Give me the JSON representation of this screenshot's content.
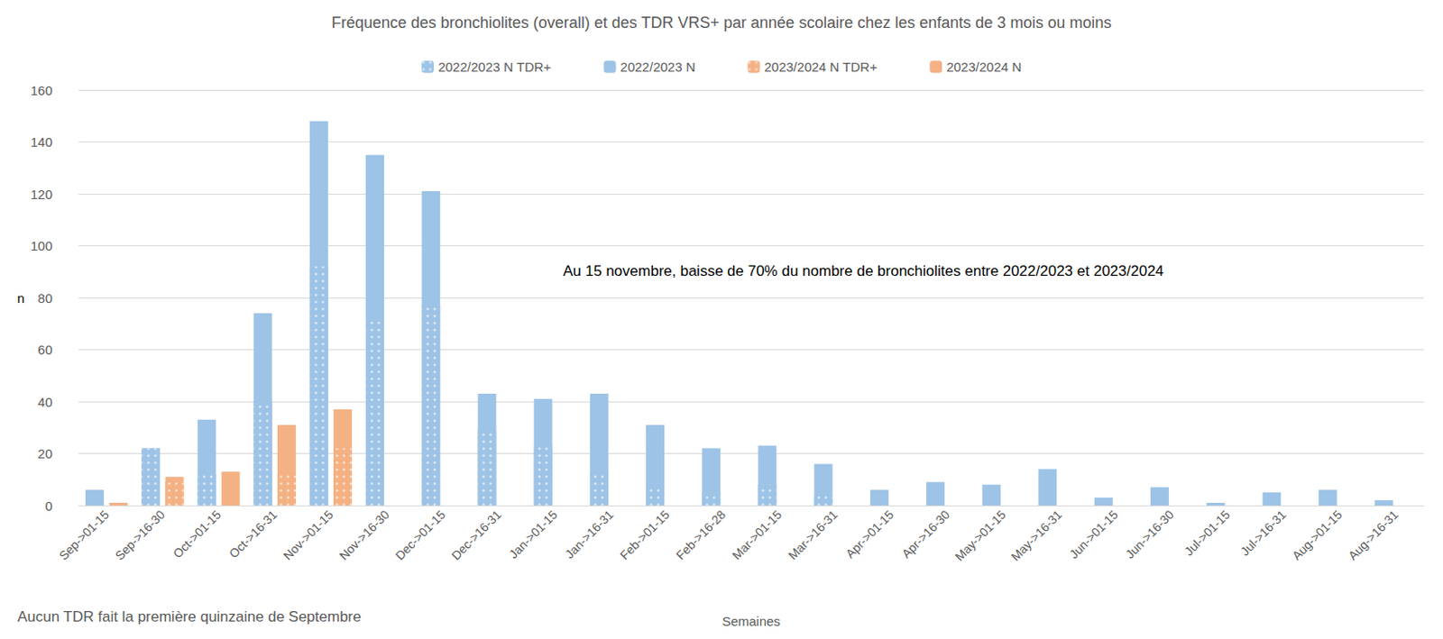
{
  "chart_data": {
    "type": "bar",
    "title": "Fréquence des bronchiolites (overall) et des TDR VRS+ par année scolaire chez les enfants de 3 mois ou moins",
    "xlabel": "Semaines",
    "ylabel": "n",
    "annotations": [
      "Au 15 novembre, baisse de 70% du nombre de bronchiolites entre 2022/2023 et 2023/2024",
      "Aucun TDR fait la première quinzaine de Septembre"
    ],
    "categories": [
      "Sep->01-15",
      "Sep->16-30",
      "Oct->01-15",
      "Oct->16-31",
      "Nov->01-15",
      "Nov->16-30",
      "Dec->01-15",
      "Dec->16-31",
      "Jan->01-15",
      "Jan->16-31",
      "Feb->01-15",
      "Feb->16-28",
      "Mar->01-15",
      "Mar->16-31",
      "Apr->01-15",
      "Apr->16-30",
      "May->01-15",
      "May->16-31",
      "Jun->01-15",
      "Jun->16-30",
      "Jul->01-15",
      "Jul->16-31",
      "Aug->01-15",
      "Aug->16-31"
    ],
    "series": [
      {
        "name": "2022/2023 N TDR+",
        "color": "#9dc3e6",
        "marker": "hatched",
        "values": [
          null,
          22,
          12,
          40,
          92,
          72,
          77,
          29,
          23,
          13,
          7,
          5,
          8,
          4,
          0,
          0,
          0,
          0,
          0,
          0,
          0,
          0,
          0,
          0
        ]
      },
      {
        "name": "2022/2023 N",
        "color": "#9dc3e6",
        "marker": "solid",
        "values": [
          6,
          22,
          33,
          74,
          148,
          135,
          121,
          43,
          41,
          43,
          31,
          22,
          23,
          16,
          6,
          9,
          8,
          14,
          3,
          7,
          1,
          5,
          6,
          2
        ]
      },
      {
        "name": "2023/2024 N TDR+",
        "color": "#f4b183",
        "marker": "hatched",
        "values": [
          null,
          9,
          0,
          12,
          22,
          null,
          null,
          null,
          null,
          null,
          null,
          null,
          null,
          null,
          null,
          null,
          null,
          null,
          null,
          null,
          null,
          null,
          null,
          null
        ]
      },
      {
        "name": "2023/2024 N",
        "color": "#f4b183",
        "marker": "solid",
        "values": [
          1,
          11,
          13,
          31,
          37,
          null,
          null,
          null,
          null,
          null,
          null,
          null,
          null,
          null,
          null,
          null,
          null,
          null,
          null,
          null,
          null,
          null,
          null,
          null
        ]
      }
    ],
    "ylim": [
      0,
      160
    ],
    "yticks": [
      0,
      20,
      40,
      60,
      80,
      100,
      120,
      140,
      160
    ],
    "grid": true,
    "legend": "top",
    "stacked": false
  }
}
